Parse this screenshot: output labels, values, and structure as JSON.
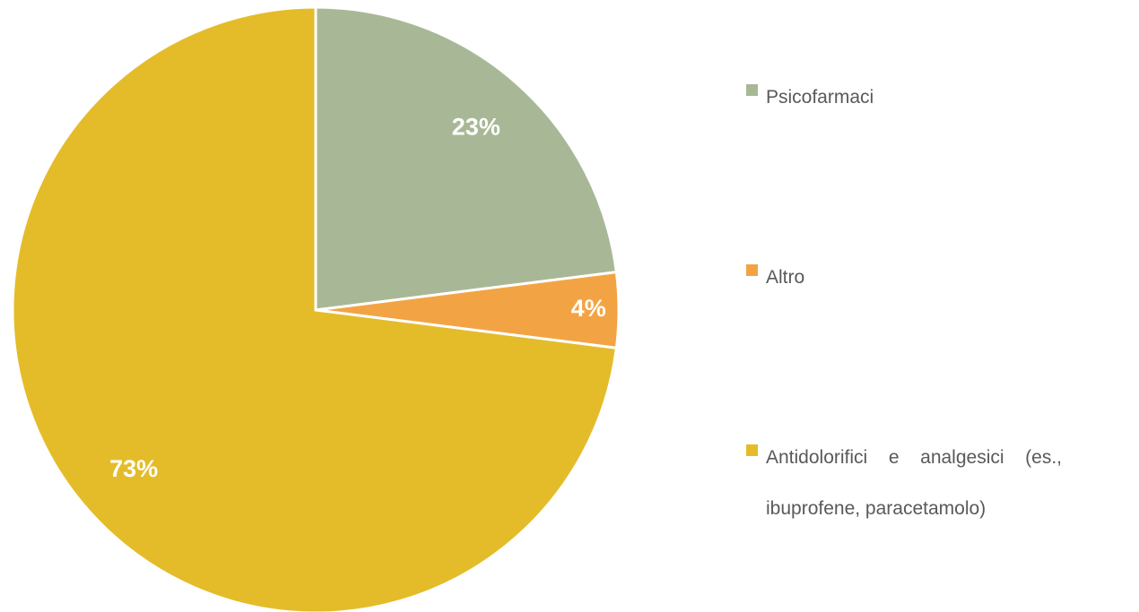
{
  "chart_data": {
    "type": "pie",
    "categories": [
      "Psicofarmaci",
      "Altro",
      "Antidolorifici e analgesici (es., ibuprofene, paracetamolo)"
    ],
    "values": [
      23,
      4,
      73
    ],
    "value_labels": [
      "23%",
      "4%",
      "73%"
    ],
    "colors": [
      "#a8b896",
      "#f2a444",
      "#e4bc2a"
    ],
    "legend": "right"
  }
}
